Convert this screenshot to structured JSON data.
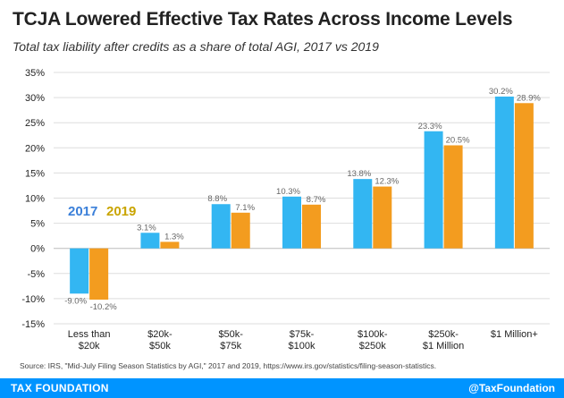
{
  "header": {
    "title": "TCJA Lowered Effective Tax Rates Across Income Levels",
    "subtitle": "Total tax liability after credits as a share of total AGI, 2017 vs 2019"
  },
  "source": "Source: IRS, \"Mid-July Filing Season Statistics by AGI,\" 2017 and 2019, https://www.irs.gov/statistics/filing-season-statistics.",
  "footer": {
    "brand": "TAX FOUNDATION",
    "handle": "@TaxFoundation"
  },
  "colors": {
    "series_2017": "#33b6f2",
    "series_2019": "#f39c1f",
    "legend_2017": "#3a7fd9",
    "legend_2019": "#c9a400",
    "grid": "#dddddd",
    "footer": "#0094ff"
  },
  "chart_data": {
    "type": "bar",
    "categories": [
      [
        "Less than",
        "$20k"
      ],
      [
        "$20k-",
        "$50k"
      ],
      [
        "$50k-",
        "$75k"
      ],
      [
        "$75k-",
        "$100k"
      ],
      [
        "$100k-",
        "$250k"
      ],
      [
        "$250k-",
        "$1 Million"
      ],
      [
        "$1 Million+"
      ]
    ],
    "series": [
      {
        "name": "2017",
        "values": [
          -9.0,
          3.1,
          8.8,
          10.3,
          13.8,
          23.3,
          30.2
        ],
        "labels": [
          "-9.0%",
          "3.1%",
          "8.8%",
          "10.3%",
          "13.8%",
          "23.3%",
          "30.2%"
        ]
      },
      {
        "name": "2019",
        "values": [
          -10.2,
          1.3,
          7.1,
          8.7,
          12.3,
          20.5,
          28.9
        ],
        "labels": [
          "-10.2%",
          "1.3%",
          "7.1%",
          "8.7%",
          "12.3%",
          "20.5%",
          "28.9%"
        ]
      }
    ],
    "yticks": [
      "35%",
      "30%",
      "25%",
      "20%",
      "15%",
      "10%",
      "5%",
      "0%",
      "-5%",
      "-10%",
      "-15%"
    ],
    "ylim": [
      -15,
      35
    ],
    "grid": true,
    "legend_placement": "left, inside plot"
  }
}
